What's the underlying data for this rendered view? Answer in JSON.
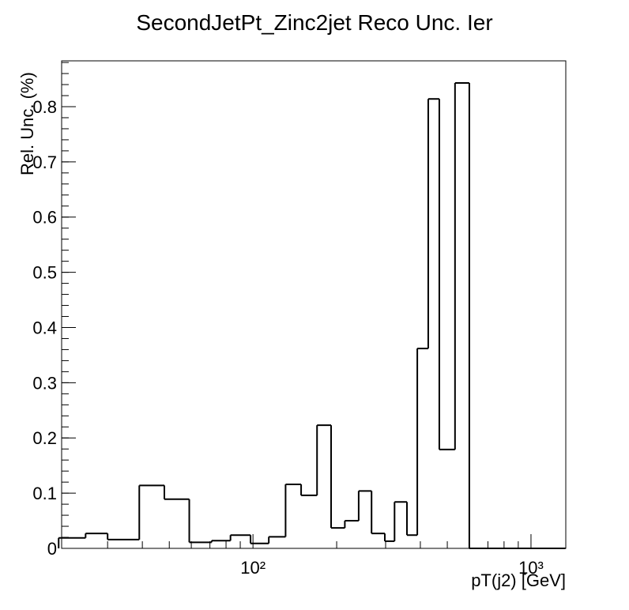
{
  "chart_data": {
    "type": "histogram",
    "title": "SecondJetPt_Zinc2jet Reco Unc. Ier",
    "x_label": "pT(j2) [GeV]",
    "y_label": "Rel. Unc. (%)",
    "bins": [
      20,
      25,
      30,
      39,
      48,
      59,
      71,
      83,
      98,
      114,
      131,
      149,
      170,
      191,
      214,
      240,
      267,
      298,
      323,
      358,
      390,
      427,
      468,
      533,
      600,
      1330
    ],
    "values": [
      0.019,
      0.027,
      0.016,
      0.114,
      0.089,
      0.011,
      0.014,
      0.024,
      0.009,
      0.021,
      0.116,
      0.096,
      0.223,
      0.037,
      0.05,
      0.104,
      0.027,
      0.013,
      0.084,
      0.024,
      0.362,
      0.814,
      0.179,
      0.843,
      0
    ],
    "color": "#000000",
    "x_log": true,
    "xlim": [
      20.5,
      1334
    ],
    "ylim": [
      0,
      0.883
    ],
    "xticks": [
      {
        "value": 100,
        "label": "10²"
      },
      {
        "value": 1000,
        "label": "10³"
      }
    ],
    "yticks": [
      0,
      0.1,
      0.2,
      0.3,
      0.4,
      0.5,
      0.6,
      0.7,
      0.8
    ]
  }
}
